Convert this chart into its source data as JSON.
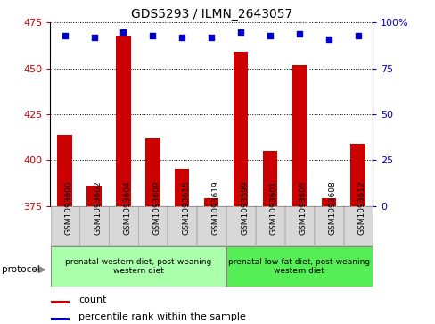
{
  "title": "GDS5293 / ILMN_2643057",
  "samples": [
    "GSM1093600",
    "GSM1093602",
    "GSM1093604",
    "GSM1093609",
    "GSM1093615",
    "GSM1093619",
    "GSM1093599",
    "GSM1093601",
    "GSM1093605",
    "GSM1093608",
    "GSM1093612"
  ],
  "counts": [
    414,
    386,
    468,
    412,
    395,
    379,
    459,
    405,
    452,
    379,
    409
  ],
  "percentiles": [
    93,
    92,
    95,
    93,
    92,
    92,
    95,
    93,
    94,
    91,
    93
  ],
  "ylim_left": [
    375,
    475
  ],
  "ylim_right": [
    0,
    100
  ],
  "yticks_left": [
    375,
    400,
    425,
    450,
    475
  ],
  "yticks_right": [
    0,
    25,
    50,
    75,
    100
  ],
  "bar_color": "#cc0000",
  "dot_color": "#0000cc",
  "group1_label": "prenatal western diet, post-weaning\nwestern diet",
  "group2_label": "prenatal low-fat diet, post-weaning\nwestern diet",
  "group1_color": "#aaffaa",
  "group2_color": "#55ee55",
  "group1_count": 6,
  "group2_count": 5,
  "protocol_label": "protocol",
  "legend_count_label": "count",
  "legend_pct_label": "percentile rank within the sample",
  "bar_width": 0.5,
  "sample_box_color": "#d8d8d8",
  "sample_box_edge": "#aaaaaa"
}
